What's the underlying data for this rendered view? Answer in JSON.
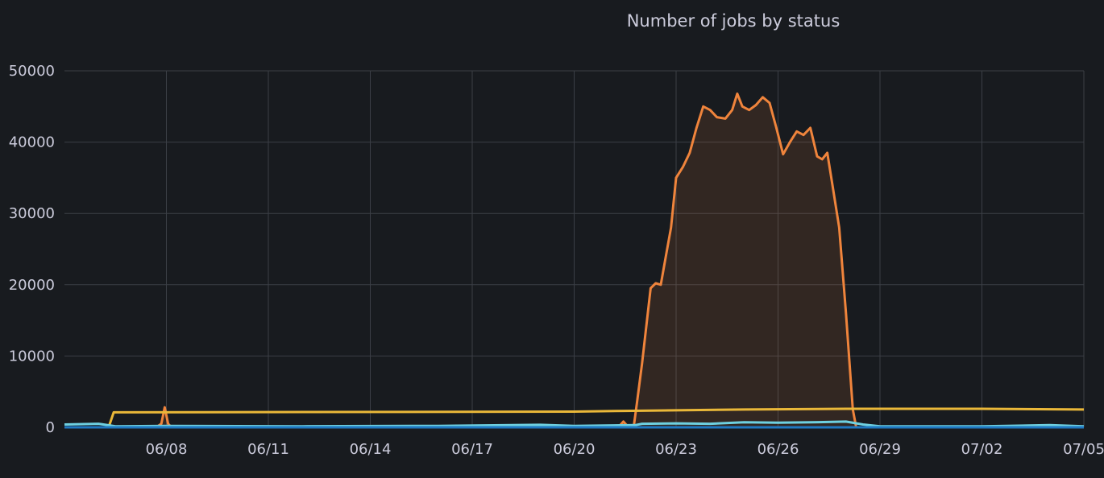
{
  "chart_data": {
    "type": "line",
    "title": "Number of jobs by status",
    "xlabel": "",
    "ylabel": "",
    "ylim": [
      0,
      50000
    ],
    "xlim": [
      "06/05",
      "07/05"
    ],
    "x_tick_labels": [
      "06/08",
      "06/11",
      "06/14",
      "06/17",
      "06/20",
      "06/23",
      "06/26",
      "06/29",
      "07/02",
      "07/05"
    ],
    "y_tick_labels": [
      "0",
      "10000",
      "20000",
      "30000",
      "40000",
      "50000"
    ],
    "y_ticks": [
      0,
      10000,
      20000,
      30000,
      40000,
      50000
    ],
    "grid": true,
    "series": [
      {
        "color": "#ef843c",
        "fill": true,
        "points": [
          [
            "06/05",
            0
          ],
          [
            "06/07",
            0
          ],
          [
            "06/07.5",
            0
          ],
          [
            "06/07.6",
            0
          ],
          [
            "06/07.7",
            0
          ],
          [
            "06/07.85",
            500
          ],
          [
            "06/07.95",
            2800
          ],
          [
            "06/08.05",
            500
          ],
          [
            "06/08.15",
            0
          ],
          [
            "06/20",
            0
          ],
          [
            "06/21.3",
            0
          ],
          [
            "06/21.45",
            800
          ],
          [
            "06/21.6",
            0
          ],
          [
            "06/21.75",
            0
          ],
          [
            "06/21.85",
            3500
          ],
          [
            "06/22.0",
            9000
          ],
          [
            "06/22.25",
            19500
          ],
          [
            "06/22.4",
            20200
          ],
          [
            "06/22.55",
            20000
          ],
          [
            "06/22.7",
            24000
          ],
          [
            "06/22.85",
            28000
          ],
          [
            "06/23.0",
            35000
          ],
          [
            "06/23.2",
            36500
          ],
          [
            "06/23.4",
            38500
          ],
          [
            "06/23.6",
            42000
          ],
          [
            "06/23.8",
            45000
          ],
          [
            "06/24.0",
            44500
          ],
          [
            "06/24.2",
            43500
          ],
          [
            "06/24.45",
            43300
          ],
          [
            "06/24.65",
            44500
          ],
          [
            "06/24.8",
            46800
          ],
          [
            "06/24.95",
            45000
          ],
          [
            "06/25.15",
            44500
          ],
          [
            "06/25.35",
            45200
          ],
          [
            "06/25.55",
            46300
          ],
          [
            "06/25.75",
            45500
          ],
          [
            "06/25.95",
            42000
          ],
          [
            "06/26.15",
            38300
          ],
          [
            "06/26.35",
            40000
          ],
          [
            "06/26.55",
            41500
          ],
          [
            "06/26.75",
            41000
          ],
          [
            "06/26.95",
            42000
          ],
          [
            "06/27.15",
            38000
          ],
          [
            "06/27.3",
            37600
          ],
          [
            "06/27.45",
            38500
          ],
          [
            "06/27.6",
            34000
          ],
          [
            "06/27.8",
            28000
          ],
          [
            "06/28.0",
            16000
          ],
          [
            "06/28.2",
            2500
          ],
          [
            "06/28.3",
            0
          ],
          [
            "07/05",
            0
          ]
        ]
      },
      {
        "color": "#eab839",
        "fill": false,
        "points": [
          [
            "06/05",
            0
          ],
          [
            "06/06.3",
            0
          ],
          [
            "06/06.45",
            2100
          ],
          [
            "06/20",
            2200
          ],
          [
            "06/21.5",
            2300
          ],
          [
            "06/25",
            2500
          ],
          [
            "06/28",
            2600
          ],
          [
            "07/02",
            2600
          ],
          [
            "07/05",
            2500
          ]
        ]
      },
      {
        "color": "#6ed0e0",
        "fill": false,
        "points": [
          [
            "06/05",
            400
          ],
          [
            "06/06",
            500
          ],
          [
            "06/06.5",
            150
          ],
          [
            "06/08",
            200
          ],
          [
            "06/12",
            150
          ],
          [
            "06/16",
            200
          ],
          [
            "06/19",
            350
          ],
          [
            "06/20",
            200
          ],
          [
            "06/21.8",
            300
          ],
          [
            "06/22",
            500
          ],
          [
            "06/23",
            550
          ],
          [
            "06/24",
            500
          ],
          [
            "06/25",
            700
          ],
          [
            "06/26",
            650
          ],
          [
            "06/27",
            700
          ],
          [
            "06/28",
            800
          ],
          [
            "06/28.5",
            400
          ],
          [
            "06/29",
            150
          ],
          [
            "07/02",
            150
          ],
          [
            "07/04",
            300
          ],
          [
            "07/05",
            150
          ]
        ]
      },
      {
        "color": "#1f78c1",
        "fill": false,
        "points": [
          [
            "06/05",
            0
          ],
          [
            "07/05",
            0
          ]
        ]
      }
    ]
  }
}
